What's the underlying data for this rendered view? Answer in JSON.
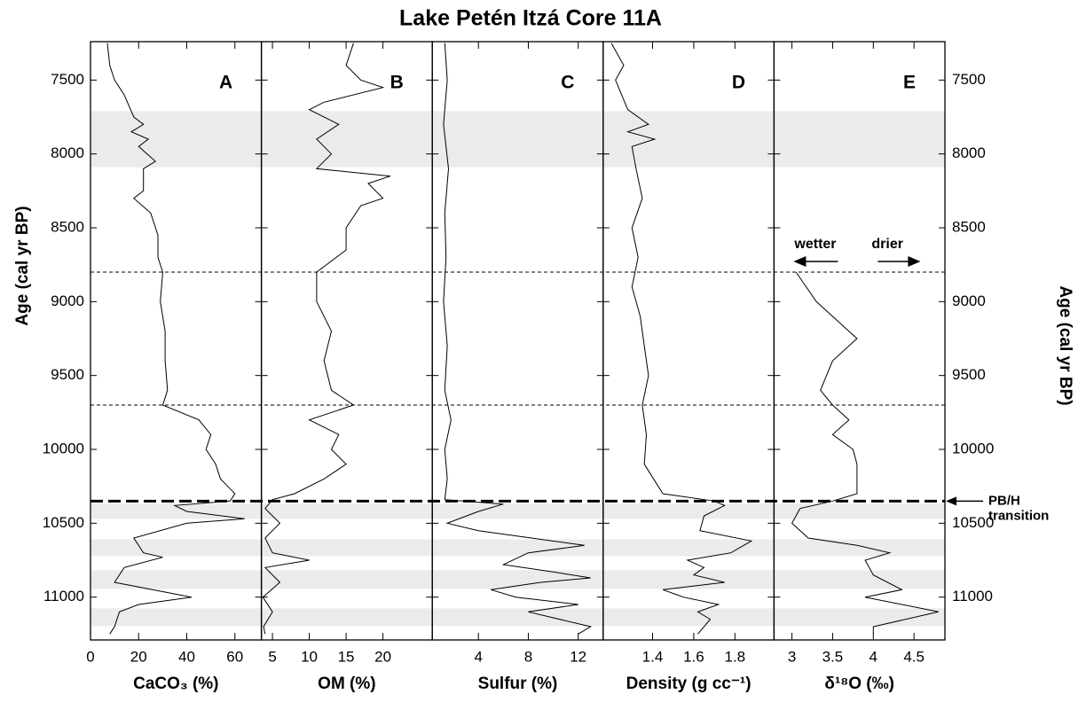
{
  "title": "Lake Petén Itzá Core 11A",
  "y_label": "Age (cal yr BP)",
  "ylim": [
    7240,
    11290
  ],
  "yticks": [
    7500,
    8000,
    8500,
    9000,
    9500,
    10000,
    10500,
    11000
  ],
  "shaded_ages": [
    [
      7710,
      8090
    ],
    [
      10368,
      10470
    ],
    [
      10609,
      10723
    ],
    [
      10818,
      10944
    ],
    [
      11076,
      11196
    ]
  ],
  "dashed_ages": [
    8800,
    9700
  ],
  "transition_age": 10350,
  "transition_label": [
    "PB/H",
    "transition"
  ],
  "wetter_label": "wetter",
  "drier_label": "drier",
  "chart_data": [
    {
      "type": "line",
      "panel": "A",
      "xlabel": "CaCO₃ (%)",
      "xlim": [
        0,
        71
      ],
      "xticks": [
        0,
        20,
        40,
        60
      ],
      "ages": [
        7250,
        7400,
        7500,
        7600,
        7750,
        7800,
        7850,
        7900,
        7950,
        8050,
        8100,
        8250,
        8300,
        8400,
        8550,
        8700,
        8800,
        9000,
        9200,
        9400,
        9600,
        9700,
        9800,
        9900,
        10000,
        10100,
        10200,
        10300,
        10350,
        10380,
        10420,
        10470,
        10500,
        10600,
        10700,
        10730,
        10800,
        10900,
        11000,
        11050,
        11100,
        11200,
        11250
      ],
      "values": [
        7,
        8,
        10,
        14,
        18,
        22,
        17,
        24,
        20,
        27,
        22,
        22,
        18,
        25,
        28,
        28,
        30,
        29,
        31,
        31,
        32,
        30,
        45,
        50,
        48,
        52,
        54,
        60,
        58,
        35,
        40,
        64,
        40,
        18,
        22,
        30,
        14,
        10,
        42,
        20,
        12,
        10,
        8
      ]
    },
    {
      "type": "line",
      "panel": "B",
      "xlabel": "OM (%)",
      "xlim": [
        3.5,
        26.7
      ],
      "xticks": [
        5,
        10,
        15,
        20
      ],
      "ages": [
        7250,
        7400,
        7500,
        7550,
        7650,
        7700,
        7800,
        7900,
        8000,
        8100,
        8150,
        8200,
        8300,
        8350,
        8500,
        8650,
        8800,
        9000,
        9200,
        9400,
        9600,
        9700,
        9800,
        9900,
        10000,
        10100,
        10200,
        10300,
        10340,
        10400,
        10500,
        10600,
        10700,
        10750,
        10800,
        10900,
        11000,
        11100,
        11200,
        11250
      ],
      "values": [
        16,
        15,
        17,
        20,
        12,
        10,
        14,
        11,
        13,
        11,
        21,
        18,
        20,
        17,
        15,
        15,
        11,
        11,
        13,
        12,
        13,
        16,
        10,
        14,
        13,
        15,
        12,
        8,
        5,
        4,
        6,
        4,
        5,
        10,
        4,
        6,
        3.7,
        5,
        3.8,
        4
      ]
    },
    {
      "type": "line",
      "panel": "C",
      "xlabel": "Sulfur (%)",
      "xlim": [
        0.3,
        14
      ],
      "xticks": [
        4,
        8,
        12
      ],
      "ages": [
        7250,
        7500,
        7800,
        8100,
        8400,
        8700,
        9000,
        9300,
        9600,
        9800,
        10000,
        10200,
        10340,
        10370,
        10420,
        10500,
        10550,
        10650,
        10700,
        10780,
        10830,
        10870,
        10900,
        10950,
        11000,
        11050,
        11100,
        11200,
        11250
      ],
      "values": [
        1.3,
        1.5,
        1.2,
        1.6,
        1.3,
        1.4,
        1.2,
        1.5,
        1.3,
        1.8,
        1.3,
        1.5,
        1.3,
        6,
        4,
        1.5,
        4,
        12.5,
        8,
        6,
        10,
        13,
        9,
        5,
        7,
        12,
        8,
        13,
        12
      ]
    },
    {
      "type": "line",
      "panel": "D",
      "xlabel": "Density (g cc⁻¹)",
      "xlim": [
        1.16,
        1.99
      ],
      "xticks": [
        1.4,
        1.6,
        1.8
      ],
      "ages": [
        7250,
        7400,
        7500,
        7700,
        7800,
        7850,
        7900,
        7950,
        8100,
        8300,
        8500,
        8700,
        8900,
        9100,
        9300,
        9500,
        9700,
        9900,
        10100,
        10300,
        10350,
        10380,
        10450,
        10550,
        10620,
        10700,
        10750,
        10800,
        10850,
        10900,
        10950,
        11000,
        11050,
        11100,
        11150,
        11250
      ],
      "values": [
        1.2,
        1.26,
        1.22,
        1.28,
        1.38,
        1.28,
        1.41,
        1.3,
        1.32,
        1.35,
        1.3,
        1.33,
        1.3,
        1.34,
        1.36,
        1.38,
        1.35,
        1.37,
        1.36,
        1.45,
        1.7,
        1.75,
        1.65,
        1.63,
        1.88,
        1.78,
        1.57,
        1.65,
        1.6,
        1.75,
        1.45,
        1.55,
        1.72,
        1.62,
        1.68,
        1.62
      ]
    },
    {
      "type": "line",
      "panel": "E",
      "xlabel": "δ¹⁸O (‰)",
      "xlim": [
        2.78,
        4.88
      ],
      "xticks": [
        3,
        3.5,
        4,
        4.5
      ],
      "ages": [
        8800,
        9000,
        9250,
        9400,
        9600,
        9700,
        9800,
        9900,
        10000,
        10100,
        10300,
        10350,
        10400,
        10500,
        10600,
        10650,
        10700,
        10750,
        10850,
        10950,
        11000,
        11100,
        11200,
        11250
      ],
      "values": [
        3.05,
        3.3,
        3.8,
        3.5,
        3.35,
        3.5,
        3.7,
        3.5,
        3.75,
        3.8,
        3.8,
        3.5,
        3.1,
        3.0,
        3.2,
        3.8,
        4.2,
        3.9,
        4.0,
        4.35,
        3.9,
        4.8,
        4.0,
        4.0
      ]
    }
  ]
}
